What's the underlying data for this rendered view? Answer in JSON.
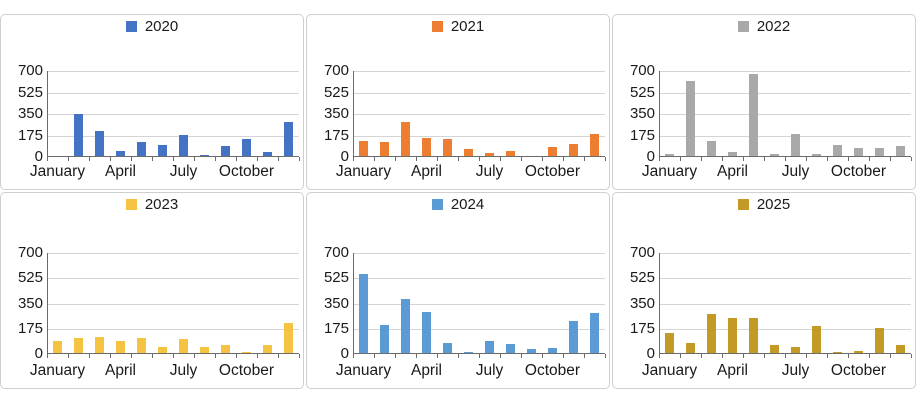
{
  "page": {
    "background": "#ffffff"
  },
  "chart_data": {
    "type": "bar",
    "layout": "small-multiples-2x3",
    "title": "",
    "categories": [
      "January",
      "February",
      "March",
      "April",
      "May",
      "June",
      "July",
      "August",
      "September",
      "October",
      "November",
      "December"
    ],
    "x_tick_labels_shown": [
      "January",
      "April",
      "July",
      "October"
    ],
    "x_tick_label_month_index": [
      0,
      3,
      6,
      9
    ],
    "ylim": [
      0,
      700
    ],
    "yticks": [
      0,
      175,
      350,
      525,
      700
    ],
    "ytick_labels": [
      "700",
      "525",
      "350",
      "175",
      "0"
    ],
    "grid": true,
    "legend_position": "top-center",
    "charts": [
      {
        "legend": "2020",
        "color": "#4472C4",
        "values": [
          0,
          345,
          200,
          40,
          110,
          90,
          170,
          10,
          85,
          140,
          30,
          280
        ]
      },
      {
        "legend": "2021",
        "color": "#ED7D31",
        "values": [
          120,
          110,
          280,
          150,
          140,
          55,
          25,
          40,
          0,
          70,
          100,
          175
        ]
      },
      {
        "legend": "2022",
        "color": "#A9A9A9",
        "values": [
          15,
          610,
          120,
          35,
          670,
          15,
          175,
          15,
          90,
          65,
          65,
          85
        ]
      },
      {
        "legend": "2023",
        "color": "#F5C242",
        "values": [
          80,
          105,
          110,
          85,
          105,
          45,
          100,
          40,
          55,
          10,
          55,
          210
        ]
      },
      {
        "legend": "2024",
        "color": "#5B9BD5",
        "values": [
          550,
          195,
          375,
          285,
          70,
          10,
          80,
          65,
          30,
          35,
          220,
          280
        ]
      },
      {
        "legend": "2025",
        "color": "#C49A27",
        "values": [
          140,
          70,
          270,
          245,
          245,
          55,
          45,
          185,
          10,
          15,
          175,
          55
        ]
      }
    ]
  }
}
